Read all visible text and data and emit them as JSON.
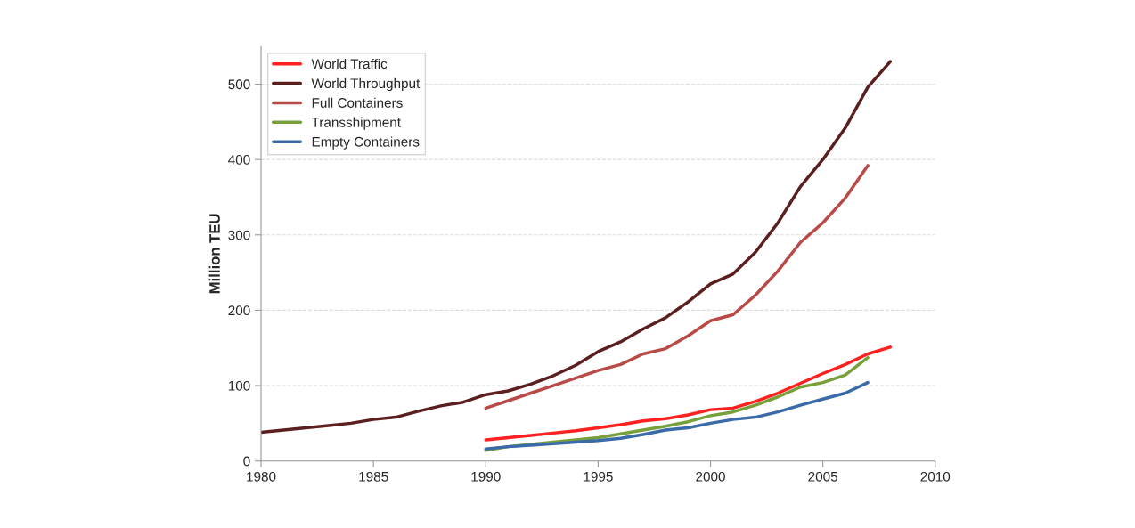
{
  "chart_data": {
    "type": "line",
    "ylabel": "Million TEU",
    "xlim": [
      1980,
      2010
    ],
    "xticks": [
      1980,
      1985,
      1990,
      1995,
      2000,
      2005,
      2010
    ],
    "ylim": [
      0,
      550
    ],
    "yticks": [
      0,
      100,
      200,
      300,
      400,
      500
    ],
    "grid": "y",
    "legend": "top left",
    "marker": "none",
    "line_style": "solid",
    "series": [
      {
        "name": "World Traffic",
        "color": "#ff2020",
        "x": [
          1990,
          1991,
          1992,
          1993,
          1994,
          1995,
          1996,
          1997,
          1998,
          1999,
          2000,
          2001,
          2002,
          2003,
          2004,
          2005,
          2006,
          2007,
          2008
        ],
        "values": [
          28,
          31,
          34,
          37,
          40,
          44,
          48,
          53,
          56,
          61,
          68,
          70,
          79,
          90,
          103,
          116,
          128,
          142,
          151
        ]
      },
      {
        "name": "World Throughput",
        "color": "#5c1f1f",
        "x": [
          1980,
          1981,
          1982,
          1983,
          1984,
          1985,
          1986,
          1987,
          1988,
          1989,
          1990,
          1991,
          1992,
          1993,
          1994,
          1995,
          1996,
          1997,
          1998,
          1999,
          2000,
          2001,
          2002,
          2003,
          2004,
          2005,
          2006,
          2007,
          2008
        ],
        "values": [
          38,
          41,
          44,
          47,
          50,
          55,
          58,
          66,
          73,
          78,
          88,
          93,
          102,
          113,
          127,
          145,
          158,
          175,
          190,
          211,
          235,
          248,
          277,
          316,
          364,
          400,
          442,
          496,
          530
        ]
      },
      {
        "name": "Full Containers",
        "color": "#b84a48",
        "x": [
          1990,
          1991,
          1992,
          1993,
          1994,
          1995,
          1996,
          1997,
          1998,
          1999,
          2000,
          2001,
          2002,
          2003,
          2004,
          2005,
          2006,
          2007
        ],
        "values": [
          70,
          80,
          90,
          100,
          110,
          120,
          128,
          142,
          149,
          166,
          186,
          194,
          220,
          252,
          290,
          316,
          349,
          392
        ]
      },
      {
        "name": "Transshipment",
        "color": "#77a03a",
        "x": [
          1990,
          1991,
          1992,
          1993,
          1994,
          1995,
          1996,
          1997,
          1998,
          1999,
          2000,
          2001,
          2002,
          2003,
          2004,
          2005,
          2006,
          2007
        ],
        "values": [
          14,
          19,
          22,
          25,
          28,
          31,
          36,
          41,
          46,
          52,
          60,
          65,
          74,
          85,
          98,
          104,
          114,
          137
        ]
      },
      {
        "name": "Empty Containers",
        "color": "#3a6aa8",
        "x": [
          1990,
          1991,
          1992,
          1993,
          1994,
          1995,
          1996,
          1997,
          1998,
          1999,
          2000,
          2001,
          2002,
          2003,
          2004,
          2005,
          2006,
          2007
        ],
        "values": [
          16,
          19,
          21,
          23,
          25,
          27,
          30,
          35,
          41,
          44,
          50,
          55,
          58,
          65,
          74,
          82,
          90,
          104
        ]
      }
    ]
  }
}
